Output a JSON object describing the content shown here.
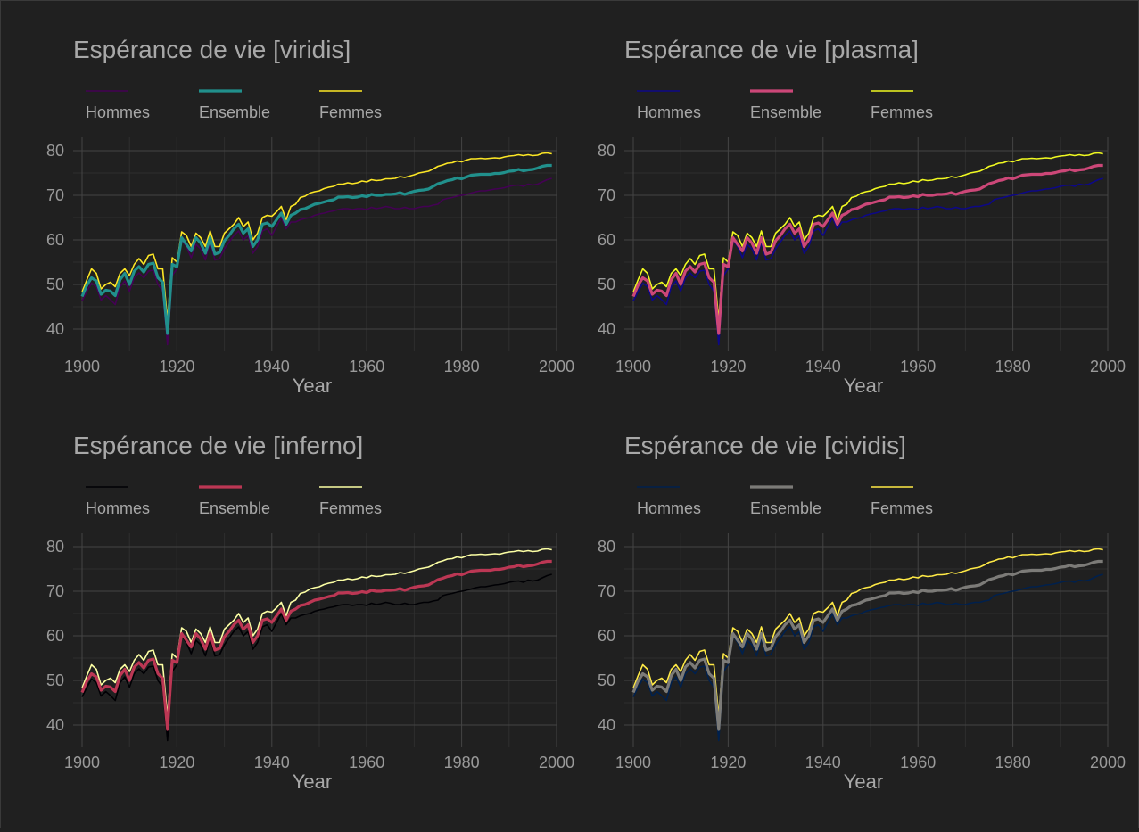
{
  "colors": {
    "background": "#202020",
    "grid": "#444444",
    "grid_minor": "#2e2e2e",
    "text": "#a8a8a8"
  },
  "chart_data": [
    {
      "type": "line",
      "title": "Espérance de vie [viridis]",
      "xlabel": "Year",
      "ylabel": "",
      "xlim": [
        1900,
        2000
      ],
      "ylim": [
        35,
        83
      ],
      "xticks": [
        "1900",
        "1920",
        "1940",
        "1960",
        "1980",
        "2000"
      ],
      "yticks": [
        "40",
        "50",
        "60",
        "70",
        "80"
      ],
      "grid": true,
      "legend_position": "top",
      "series": [
        {
          "name": "Hommes",
          "color": "#440154"
        },
        {
          "name": "Ensemble",
          "color": "#21908c"
        },
        {
          "name": "Femmes",
          "color": "#fde725"
        }
      ]
    },
    {
      "type": "line",
      "title": "Espérance de vie [plasma]",
      "xlabel": "Year",
      "ylabel": "",
      "xlim": [
        1900,
        2000
      ],
      "ylim": [
        35,
        83
      ],
      "xticks": [
        "1900",
        "1920",
        "1940",
        "1960",
        "1980",
        "2000"
      ],
      "yticks": [
        "40",
        "50",
        "60",
        "70",
        "80"
      ],
      "grid": true,
      "legend_position": "top",
      "series": [
        {
          "name": "Hommes",
          "color": "#0d0887"
        },
        {
          "name": "Ensemble",
          "color": "#cc4778"
        },
        {
          "name": "Femmes",
          "color": "#f0f921"
        }
      ]
    },
    {
      "type": "line",
      "title": "Espérance de vie [inferno]",
      "xlabel": "Year",
      "ylabel": "",
      "xlim": [
        1900,
        2000
      ],
      "ylim": [
        35,
        83
      ],
      "xticks": [
        "1900",
        "1920",
        "1940",
        "1960",
        "1980",
        "2000"
      ],
      "yticks": [
        "40",
        "50",
        "60",
        "70",
        "80"
      ],
      "grid": true,
      "legend_position": "top",
      "series": [
        {
          "name": "Hommes",
          "color": "#000004"
        },
        {
          "name": "Ensemble",
          "color": "#bc3754"
        },
        {
          "name": "Femmes",
          "color": "#fcffa4"
        }
      ]
    },
    {
      "type": "line",
      "title": "Espérance de vie [cividis]",
      "xlabel": "Year",
      "ylabel": "",
      "xlim": [
        1900,
        2000
      ],
      "ylim": [
        35,
        83
      ],
      "xticks": [
        "1900",
        "1920",
        "1940",
        "1960",
        "1980",
        "2000"
      ],
      "yticks": [
        "40",
        "50",
        "60",
        "70",
        "80"
      ],
      "grid": true,
      "legend_position": "top",
      "series": [
        {
          "name": "Hommes",
          "color": "#00204d"
        },
        {
          "name": "Ensemble",
          "color": "#7c7b78"
        },
        {
          "name": "Femmes",
          "color": "#ffea46"
        }
      ]
    }
  ],
  "shared_data": {
    "x": [
      1900,
      1901,
      1902,
      1903,
      1904,
      1905,
      1906,
      1907,
      1908,
      1909,
      1910,
      1911,
      1912,
      1913,
      1914,
      1915,
      1916,
      1917,
      1918,
      1919,
      1920,
      1921,
      1922,
      1923,
      1924,
      1925,
      1926,
      1927,
      1928,
      1929,
      1930,
      1931,
      1932,
      1933,
      1934,
      1935,
      1936,
      1937,
      1938,
      1939,
      1940,
      1941,
      1942,
      1943,
      1944,
      1945,
      1946,
      1947,
      1948,
      1949,
      1950,
      1951,
      1952,
      1953,
      1954,
      1955,
      1956,
      1957,
      1958,
      1959,
      1960,
      1961,
      1962,
      1963,
      1964,
      1965,
      1966,
      1967,
      1968,
      1969,
      1970,
      1971,
      1972,
      1973,
      1974,
      1975,
      1976,
      1977,
      1978,
      1979,
      1980,
      1981,
      1982,
      1983,
      1984,
      1985,
      1986,
      1987,
      1988,
      1989,
      1990,
      1991,
      1992,
      1993,
      1994,
      1995,
      1996,
      1997,
      1998,
      1999
    ],
    "Hommes": [
      46.3,
      48.4,
      50.3,
      49.5,
      46.5,
      47.5,
      46.6,
      45.5,
      49.5,
      50.8,
      48.5,
      51.5,
      52.6,
      51.5,
      53.0,
      53.2,
      50.0,
      48.5,
      36.5,
      52.0,
      53.5,
      60.0,
      58.5,
      56.0,
      59.0,
      58.0,
      55.5,
      59.5,
      55.5,
      55.8,
      58.0,
      59.5,
      61.0,
      62.0,
      60.0,
      61.0,
      57.0,
      58.5,
      62.0,
      62.5,
      61.0,
      63.0,
      65.0,
      62.5,
      64.0,
      64.0,
      64.5,
      64.8,
      65.0,
      65.5,
      65.8,
      66.0,
      66.3,
      66.5,
      66.8,
      67.0,
      67.0,
      66.8,
      67.0,
      67.0,
      66.8,
      67.3,
      67.0,
      67.2,
      67.5,
      67.3,
      67.0,
      67.0,
      67.3,
      67.0,
      67.0,
      67.3,
      67.5,
      67.5,
      67.8,
      68.0,
      69.0,
      69.3,
      69.5,
      69.8,
      70.0,
      70.2,
      70.5,
      70.8,
      71.0,
      71.0,
      71.2,
      71.4,
      71.5,
      71.7,
      72.0,
      72.2,
      72.3,
      72.0,
      72.5,
      72.3,
      72.5,
      73.0,
      73.5,
      73.8
    ],
    "Ensemble": [
      47.3,
      49.8,
      51.5,
      50.8,
      47.8,
      48.7,
      48.5,
      47.5,
      51.1,
      52.5,
      50.0,
      53.0,
      54.0,
      52.8,
      54.5,
      54.8,
      51.5,
      50.5,
      39.0,
      54.5,
      54.0,
      60.5,
      59.0,
      57.5,
      60.5,
      59.3,
      57.0,
      60.5,
      56.8,
      57.2,
      59.8,
      61.0,
      62.5,
      63.5,
      61.5,
      62.5,
      58.5,
      60.0,
      63.5,
      63.8,
      63.0,
      64.5,
      66.0,
      63.5,
      65.5,
      66.0,
      66.8,
      67.0,
      67.5,
      68.0,
      68.2,
      68.5,
      68.8,
      69.0,
      69.6,
      69.6,
      69.7,
      69.5,
      69.6,
      69.9,
      69.7,
      70.2,
      70.0,
      70.0,
      70.2,
      70.2,
      70.3,
      70.6,
      70.2,
      70.6,
      70.9,
      71.1,
      71.2,
      71.4,
      72.0,
      72.6,
      72.9,
      73.3,
      73.5,
      73.9,
      73.7,
      74.1,
      74.5,
      74.6,
      74.7,
      74.7,
      74.7,
      74.9,
      74.9,
      75.1,
      75.4,
      75.5,
      75.8,
      75.5,
      75.7,
      75.8,
      76.1,
      76.5,
      76.7,
      76.7
    ],
    "Femmes": [
      48.3,
      51.0,
      53.5,
      52.5,
      49.0,
      50.0,
      50.5,
      49.5,
      52.5,
      53.5,
      52.0,
      54.5,
      55.8,
      54.5,
      56.5,
      56.8,
      53.5,
      53.5,
      42.0,
      56.0,
      55.0,
      61.8,
      61.0,
      58.5,
      61.5,
      60.5,
      58.5,
      62.0,
      58.5,
      58.5,
      61.5,
      62.5,
      63.5,
      65.0,
      63.0,
      64.0,
      60.0,
      61.5,
      65.0,
      65.5,
      65.3,
      66.3,
      67.5,
      64.5,
      67.5,
      68.0,
      69.5,
      69.8,
      70.5,
      70.8,
      71.0,
      71.5,
      71.8,
      72.0,
      72.5,
      72.5,
      72.8,
      72.6,
      72.8,
      73.2,
      73.0,
      73.5,
      73.3,
      73.4,
      73.7,
      73.7,
      73.8,
      74.2,
      74.0,
      74.3,
      74.6,
      75.0,
      75.2,
      75.4,
      75.9,
      76.5,
      76.8,
      77.2,
      77.3,
      77.7,
      77.5,
      77.9,
      78.2,
      78.2,
      78.3,
      78.2,
      78.3,
      78.4,
      78.3,
      78.6,
      78.8,
      78.9,
      79.1,
      78.9,
      79.1,
      78.9,
      79.0,
      79.4,
      79.5,
      79.3
    ]
  }
}
